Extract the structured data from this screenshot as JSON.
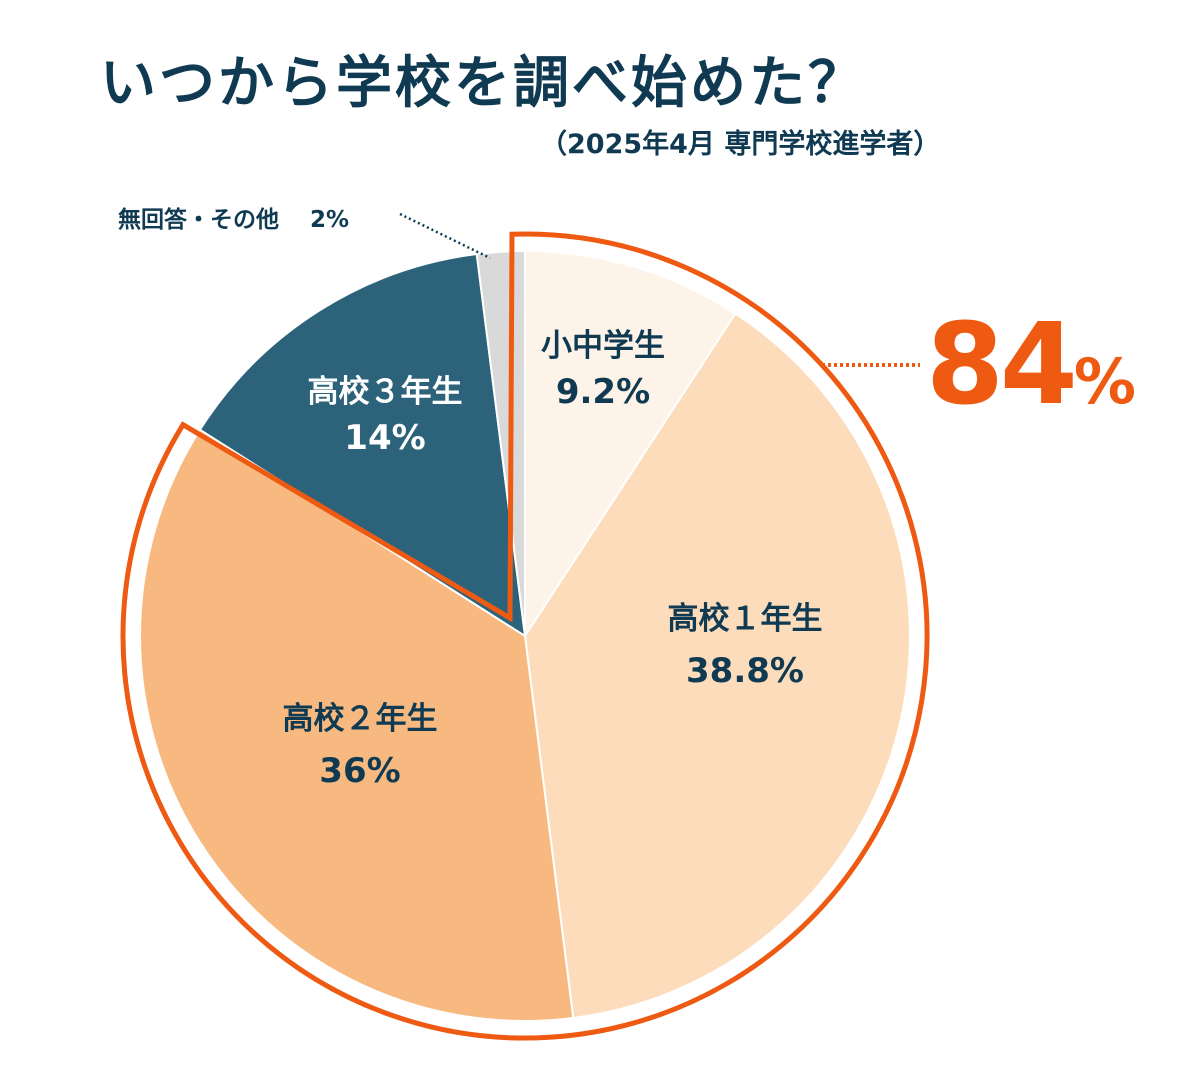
{
  "title": "いつから学校を調べ始めた？",
  "subtitle": "（2025年4月 専門学校進学者）",
  "highlight": {
    "value": "84",
    "unit": "%",
    "color": "#ee5a12"
  },
  "chart_data": {
    "type": "pie",
    "start": "top",
    "direction": "clockwise",
    "slices": [
      {
        "label": "小中学生",
        "value": 9.2,
        "value_label": "9.2%",
        "color": "#fdf3e9"
      },
      {
        "label": "高校１年生",
        "value": 38.8,
        "value_label": "38.8%",
        "color": "#fddcbc"
      },
      {
        "label": "高校２年生",
        "value": 36,
        "value_label": "36%",
        "color": "#f8b981"
      },
      {
        "label": "高校３年生",
        "value": 14,
        "value_label": "14%",
        "color": "#2c637b"
      },
      {
        "label": "無回答・その他",
        "value": 2,
        "value_label": "2%",
        "color": "#d9d9d9"
      }
    ],
    "highlighted_slices": [
      "小中学生",
      "高校１年生",
      "高校２年生"
    ]
  }
}
